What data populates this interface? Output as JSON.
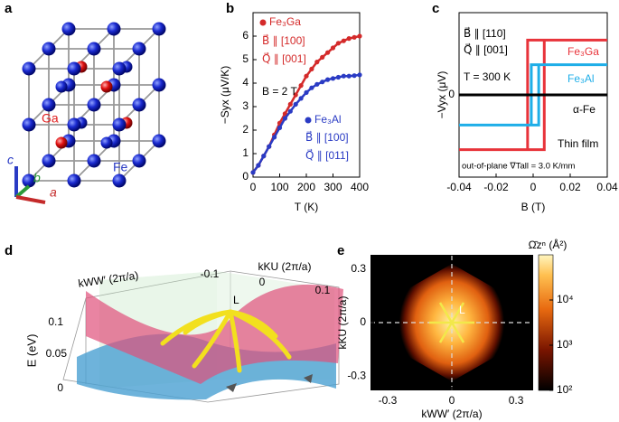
{
  "panel_labels": [
    "a",
    "b",
    "c",
    "d",
    "e"
  ],
  "panel_a": {
    "atoms": [
      "Ga",
      "Fe"
    ],
    "axes": [
      "c",
      "b",
      "a"
    ]
  },
  "chart_data": [
    {
      "type": "line",
      "xlabel": "T (K)",
      "ylabel": "−Syx (μV/K)",
      "x": [
        0,
        20,
        40,
        60,
        80,
        100,
        120,
        140,
        160,
        180,
        200,
        220,
        240,
        260,
        280,
        300,
        320,
        340,
        360,
        380,
        400
      ],
      "series": [
        {
          "name": "Fe₃Ga",
          "color": "#d42a2a",
          "values": [
            0.2,
            0.5,
            0.9,
            1.3,
            1.8,
            2.3,
            2.7,
            3.1,
            3.5,
            3.9,
            4.3,
            4.6,
            4.9,
            5.1,
            5.3,
            5.5,
            5.7,
            5.8,
            5.9,
            5.95,
            6.0
          ]
        },
        {
          "name": "Fe₃Al",
          "color": "#2a3bc4",
          "values": [
            0.2,
            0.5,
            0.9,
            1.3,
            1.7,
            2.1,
            2.5,
            2.8,
            3.1,
            3.35,
            3.6,
            3.8,
            3.95,
            4.05,
            4.15,
            4.2,
            4.25,
            4.3,
            4.3,
            4.32,
            4.35
          ]
        }
      ],
      "xlim": [
        0,
        400
      ],
      "ylim": [
        0,
        7
      ],
      "xticks": [
        0,
        100,
        200,
        300,
        400
      ],
      "yticks": [
        0,
        1,
        2,
        3,
        4,
        5,
        6
      ],
      "annotations": [
        "B⃗ ∥ [100]",
        "Q⃗ ∥ [001]",
        "B = 2 T",
        "B⃗ ∥ [100]",
        "Q⃗ ∥ [011]"
      ]
    },
    {
      "type": "line",
      "xlabel": "B (T)",
      "ylabel": "−Vyx (μV)",
      "series": [
        {
          "name": "Fe₃Ga",
          "color": "#e8333a",
          "x": [
            -0.04,
            0.006,
            0.006,
            0.04,
            -0.003,
            -0.003,
            -0.04
          ],
          "values": [
            -20,
            -20,
            20,
            20,
            20,
            -20,
            -20
          ]
        },
        {
          "name": "Fe₃Al",
          "color": "#1eaee8",
          "x": [
            -0.04,
            0.003,
            0.003,
            0.04,
            -0.001,
            -0.001,
            -0.04
          ],
          "values": [
            -11,
            -11,
            11,
            11,
            11,
            -11,
            -11
          ]
        },
        {
          "name": "α-Fe",
          "color": "#000000",
          "x": [
            -0.04,
            0.04
          ],
          "values": [
            0,
            0
          ]
        }
      ],
      "xlim": [
        -0.04,
        0.04
      ],
      "ylim": [
        -30,
        30
      ],
      "xticks": [
        -0.04,
        -0.02,
        0,
        0.02,
        0.04
      ],
      "yticks": [
        0
      ],
      "annotations": [
        "B⃗ ∥ [110]",
        "Q⃗ ∥ [001]",
        "T = 300 K",
        "Thin film",
        "out-of-plane ∇Tall = 3.0 K/mm"
      ]
    },
    {
      "type": "heatmap",
      "xlabel": "kWW′ (2π/a)",
      "ylabel": "kKU (2π/a)",
      "xlim": [
        -0.38,
        0.38
      ],
      "ylim": [
        -0.38,
        0.38
      ],
      "xticks": [
        -0.3,
        0,
        0.3
      ],
      "yticks": [
        -0.3,
        0,
        0.3
      ],
      "colorbar": {
        "label": "Ω̄zⁿ (Å²)",
        "log": true,
        "clim": [
          100,
          100000
        ],
        "ticks": [
          {
            "value": 100,
            "label": "10²"
          },
          {
            "value": 1000,
            "label": "10³"
          },
          {
            "value": 10000,
            "label": "10⁴"
          }
        ]
      },
      "annotations": [
        "L"
      ]
    }
  ],
  "panel_d": {
    "xlabel": "kWW′ (2π/a)",
    "ylabel": "kKU (2π/a)",
    "zlabel": "E (eV)",
    "yticks": [
      "-0.1",
      "0",
      "0.1"
    ],
    "zticks": [
      "0.1",
      "0.05",
      "0"
    ],
    "point": "L"
  }
}
